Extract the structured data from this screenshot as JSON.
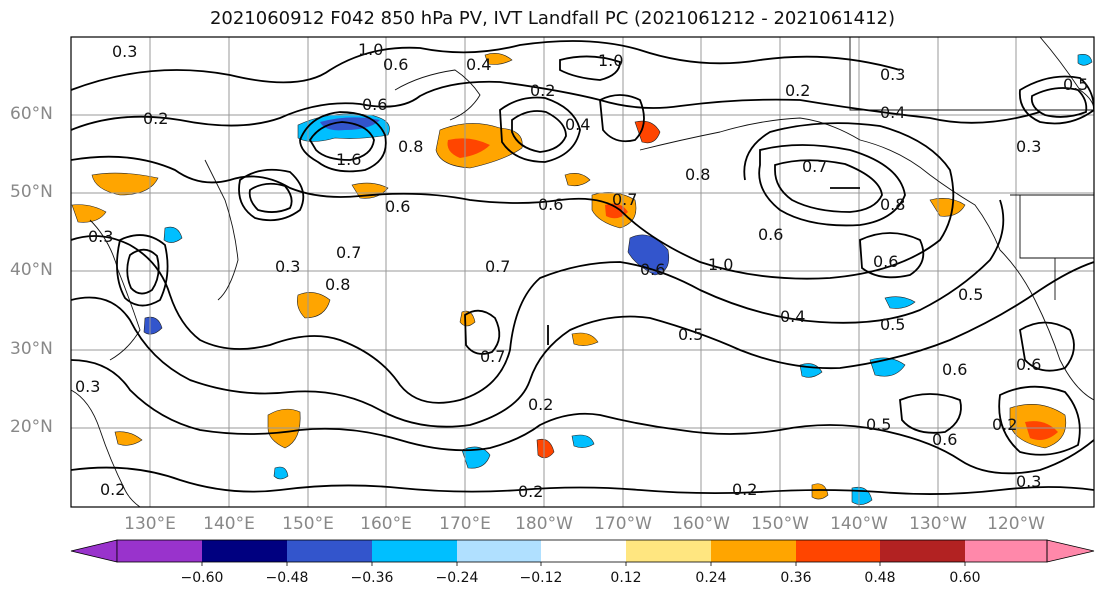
{
  "title": "2021060912 F042 850 hPa PV, IVT Landfall PC (2021061212 - 2021061412)",
  "latitude_labels": [
    "60°N",
    "50°N",
    "40°N",
    "30°N",
    "20°N"
  ],
  "longitude_labels": [
    "130°E",
    "140°E",
    "150°E",
    "160°E",
    "170°E",
    "180°W",
    "170°W",
    "160°W",
    "150°W",
    "140°W",
    "130°W",
    "120°W"
  ],
  "colorbar": {
    "ticks": [
      "−0.60",
      "−0.48",
      "−0.36",
      "−0.24",
      "−0.12",
      "0.12",
      "0.24",
      "0.36",
      "0.48",
      "0.60"
    ],
    "colors": [
      "#9933cc",
      "#000080",
      "#3355cc",
      "#00bfff",
      "#b0e0ff",
      "#ffffff",
      "#ffe680",
      "#ffa500",
      "#ff4500",
      "#b22222",
      "#ff88aa"
    ]
  },
  "contour_labels": [
    "0.3",
    "1.0",
    "0.6",
    "0.4",
    "1.0",
    "0.2",
    "0.4",
    "0.2",
    "0.3",
    "0.5",
    "0.2",
    "0.6",
    "1.6",
    "0.8",
    "0.6",
    "0.7",
    "0.7",
    "0.4",
    "0.8",
    "0.3",
    "0.3",
    "0.6",
    "0.7",
    "0.8",
    "0.6",
    "0.3",
    "0.6",
    "0.7",
    "0.5",
    "0.8",
    "1.0",
    "0.6",
    "0.7",
    "0.5",
    "0.4",
    "0.5",
    "0.6",
    "0.6",
    "0.2",
    "0.5",
    "0.6",
    "0.2",
    "0.2",
    "0.2",
    "0.3",
    "0.3",
    "0.2"
  ]
}
